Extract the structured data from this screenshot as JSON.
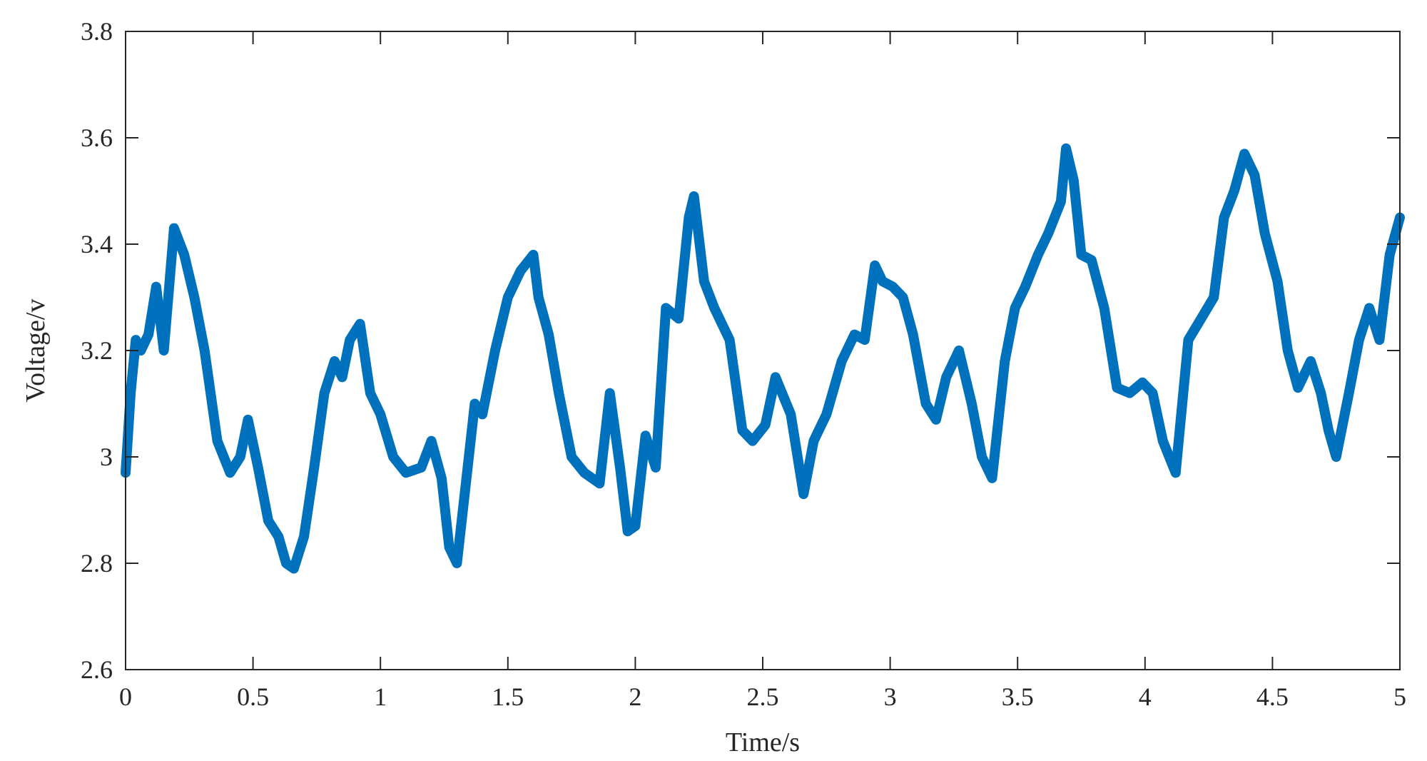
{
  "chart_data": {
    "type": "line",
    "title": "",
    "xlabel": "Time/s",
    "ylabel": "Voltage/v",
    "xlim": [
      0,
      5
    ],
    "ylim": [
      2.6,
      3.8
    ],
    "xticks": [
      0,
      0.5,
      1,
      1.5,
      2,
      2.5,
      3,
      3.5,
      4,
      4.5,
      5
    ],
    "xtick_labels": [
      "0",
      "0.5",
      "1",
      "1.5",
      "2",
      "2.5",
      "3",
      "3.5",
      "4",
      "4.5",
      "5"
    ],
    "yticks": [
      2.6,
      2.8,
      3.0,
      3.2,
      3.4,
      3.6,
      3.8
    ],
    "ytick_labels": [
      "2.6",
      "2.8",
      "3",
      "3.2",
      "3.4",
      "3.6",
      "3.8"
    ],
    "grid": false,
    "line_color": "#0072BD",
    "series": [
      {
        "x": [
          0,
          0.02,
          0.04,
          0.06,
          0.09,
          0.12,
          0.15,
          0.19,
          0.23,
          0.27,
          0.31,
          0.36,
          0.41,
          0.45,
          0.48,
          0.52,
          0.56,
          0.6,
          0.63,
          0.66,
          0.7,
          0.74,
          0.78,
          0.82,
          0.85,
          0.88,
          0.92,
          0.96,
          1.0,
          1.05,
          1.1,
          1.16,
          1.2,
          1.24,
          1.27,
          1.3,
          1.34,
          1.37,
          1.4,
          1.45,
          1.5,
          1.55,
          1.6,
          1.62,
          1.66,
          1.7,
          1.75,
          1.8,
          1.86,
          1.9,
          1.94,
          1.97,
          2.0,
          2.04,
          2.08,
          2.12,
          2.17,
          2.21,
          2.23,
          2.27,
          2.31,
          2.37,
          2.42,
          2.46,
          2.51,
          2.55,
          2.61,
          2.66,
          2.7,
          2.75,
          2.81,
          2.86,
          2.9,
          2.94,
          2.97,
          3.01,
          3.05,
          3.09,
          3.14,
          3.18,
          3.22,
          3.27,
          3.32,
          3.36,
          3.4,
          3.45,
          3.49,
          3.53,
          3.58,
          3.62,
          3.67,
          3.69,
          3.72,
          3.75,
          3.79,
          3.84,
          3.89,
          3.94,
          3.99,
          4.03,
          4.07,
          4.12,
          4.17,
          4.22,
          4.27,
          4.31,
          4.35,
          4.39,
          4.43,
          4.47,
          4.52,
          4.56,
          4.6,
          4.65,
          4.69,
          4.72,
          4.75,
          4.8,
          4.84,
          4.88,
          4.92,
          4.96,
          5.0
        ],
        "values": [
          2.97,
          3.12,
          3.22,
          3.2,
          3.23,
          3.32,
          3.2,
          3.43,
          3.38,
          3.3,
          3.2,
          3.03,
          2.97,
          3.0,
          3.07,
          2.98,
          2.88,
          2.85,
          2.8,
          2.79,
          2.85,
          2.98,
          3.12,
          3.18,
          3.15,
          3.22,
          3.25,
          3.12,
          3.08,
          3.0,
          2.97,
          2.98,
          3.03,
          2.96,
          2.83,
          2.8,
          2.97,
          3.1,
          3.08,
          3.2,
          3.3,
          3.35,
          3.38,
          3.3,
          3.23,
          3.12,
          3.0,
          2.97,
          2.95,
          3.12,
          2.98,
          2.86,
          2.87,
          3.04,
          2.98,
          3.28,
          3.26,
          3.45,
          3.49,
          3.33,
          3.28,
          3.22,
          3.05,
          3.03,
          3.06,
          3.15,
          3.08,
          2.93,
          3.03,
          3.08,
          3.18,
          3.23,
          3.22,
          3.36,
          3.33,
          3.32,
          3.3,
          3.23,
          3.1,
          3.07,
          3.15,
          3.2,
          3.1,
          3.0,
          2.96,
          3.18,
          3.28,
          3.32,
          3.38,
          3.42,
          3.48,
          3.58,
          3.52,
          3.38,
          3.37,
          3.28,
          3.13,
          3.12,
          3.14,
          3.12,
          3.03,
          2.97,
          3.22,
          3.26,
          3.3,
          3.45,
          3.5,
          3.57,
          3.53,
          3.42,
          3.33,
          3.2,
          3.13,
          3.18,
          3.12,
          3.05,
          3.0,
          3.12,
          3.22,
          3.28,
          3.22,
          3.38,
          3.45
        ]
      }
    ]
  }
}
